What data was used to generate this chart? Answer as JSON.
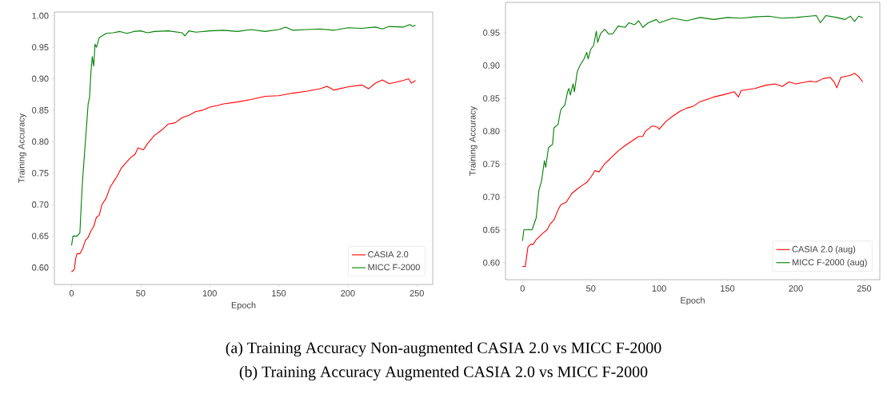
{
  "chart_data": [
    {
      "type": "line",
      "xlabel": "Epoch",
      "ylabel": "Training Accuracy",
      "legend": "bottom right",
      "xlim": [
        -12.45,
        261.45
      ],
      "ylim": [
        0.573,
        1.006
      ],
      "xticks": [
        0,
        50,
        100,
        150,
        200,
        250
      ],
      "yticks": [
        {
          "value": 0.6,
          "label": "0.60"
        },
        {
          "value": 0.65,
          "label": "0.65"
        },
        {
          "value": 0.7,
          "label": "0.70"
        },
        {
          "value": 0.75,
          "label": "0.75"
        },
        {
          "value": 0.8,
          "label": "0.80"
        },
        {
          "value": 0.85,
          "label": "0.85"
        },
        {
          "value": 0.9,
          "label": "0.90"
        },
        {
          "value": 0.95,
          "label": "0.95"
        },
        {
          "value": 1.0,
          "label": "1.00"
        }
      ],
      "annotations": [
        "(a) Training Accuracy Non-augmented CASIA 2.0 vs MICC F-2000"
      ],
      "series": [
        {
          "name": "CASIA 2.0",
          "color": "#ff0000",
          "x": [
            0,
            2,
            3,
            4,
            6,
            8,
            10,
            12,
            14,
            16,
            18,
            20,
            22,
            25,
            28,
            30,
            33,
            36,
            40,
            43,
            46,
            48,
            52,
            55,
            60,
            65,
            70,
            75,
            80,
            85,
            90,
            95,
            100,
            105,
            110,
            120,
            130,
            140,
            150,
            160,
            170,
            180,
            185,
            190,
            200,
            210,
            215,
            220,
            225,
            230,
            240,
            244,
            246,
            249
          ],
          "values": [
            0.593,
            0.597,
            0.615,
            0.622,
            0.622,
            0.63,
            0.643,
            0.648,
            0.658,
            0.665,
            0.68,
            0.683,
            0.7,
            0.71,
            0.728,
            0.735,
            0.745,
            0.758,
            0.768,
            0.775,
            0.78,
            0.79,
            0.787,
            0.797,
            0.81,
            0.818,
            0.828,
            0.83,
            0.838,
            0.842,
            0.848,
            0.85,
            0.855,
            0.857,
            0.86,
            0.863,
            0.867,
            0.872,
            0.873,
            0.877,
            0.88,
            0.884,
            0.888,
            0.882,
            0.887,
            0.89,
            0.884,
            0.893,
            0.898,
            0.892,
            0.897,
            0.9,
            0.893,
            0.897
          ]
        },
        {
          "name": "MICC F-2000",
          "color": "#008000",
          "x": [
            0,
            1,
            4,
            6,
            7,
            8,
            10,
            12,
            13,
            14,
            15,
            16,
            17,
            18,
            20,
            22,
            25,
            30,
            35,
            40,
            45,
            50,
            55,
            60,
            70,
            80,
            82,
            85,
            90,
            100,
            110,
            120,
            130,
            140,
            150,
            155,
            160,
            170,
            180,
            190,
            200,
            210,
            220,
            225,
            230,
            240,
            245,
            247,
            249
          ],
          "values": [
            0.635,
            0.65,
            0.65,
            0.655,
            0.7,
            0.74,
            0.8,
            0.86,
            0.87,
            0.91,
            0.935,
            0.92,
            0.955,
            0.95,
            0.965,
            0.968,
            0.972,
            0.973,
            0.975,
            0.972,
            0.975,
            0.976,
            0.973,
            0.975,
            0.976,
            0.973,
            0.968,
            0.976,
            0.974,
            0.976,
            0.977,
            0.975,
            0.978,
            0.975,
            0.978,
            0.982,
            0.977,
            0.978,
            0.979,
            0.977,
            0.981,
            0.98,
            0.982,
            0.979,
            0.983,
            0.982,
            0.986,
            0.983,
            0.985
          ]
        }
      ]
    },
    {
      "type": "line",
      "xlabel": "Epoch",
      "ylabel": "Training Accuracy",
      "legend": "bottom right",
      "xlim": [
        -12.45,
        261.45
      ],
      "ylim": [
        0.574,
        0.996
      ],
      "xticks": [
        0,
        50,
        100,
        150,
        200,
        250
      ],
      "yticks": [
        {
          "value": 0.6,
          "label": "0.60"
        },
        {
          "value": 0.65,
          "label": "0.65"
        },
        {
          "value": 0.7,
          "label": "0.70"
        },
        {
          "value": 0.75,
          "label": "0.75"
        },
        {
          "value": 0.8,
          "label": "0.80"
        },
        {
          "value": 0.85,
          "label": "0.85"
        },
        {
          "value": 0.9,
          "label": "0.90"
        },
        {
          "value": 0.95,
          "label": "0.95"
        }
      ],
      "annotations": [
        "(b) Training Accuracy Augmented CASIA 2.0 vs MICC F-2000"
      ],
      "series": [
        {
          "name": "CASIA 2.0 (aug)",
          "color": "#ff0000",
          "x": [
            0,
            2,
            4,
            6,
            8,
            10,
            15,
            18,
            20,
            23,
            26,
            28,
            32,
            36,
            40,
            44,
            47,
            50,
            53,
            56,
            60,
            65,
            70,
            75,
            80,
            85,
            88,
            90,
            95,
            99,
            100,
            105,
            110,
            115,
            120,
            125,
            130,
            140,
            148,
            155,
            158,
            160,
            170,
            178,
            185,
            190,
            195,
            200,
            210,
            215,
            220,
            225,
            228,
            230,
            233,
            240,
            243,
            246,
            249
          ],
          "values": [
            0.594,
            0.594,
            0.624,
            0.628,
            0.628,
            0.635,
            0.645,
            0.65,
            0.658,
            0.665,
            0.68,
            0.688,
            0.692,
            0.705,
            0.712,
            0.718,
            0.722,
            0.73,
            0.74,
            0.738,
            0.75,
            0.76,
            0.77,
            0.778,
            0.785,
            0.792,
            0.792,
            0.8,
            0.808,
            0.806,
            0.803,
            0.815,
            0.823,
            0.83,
            0.835,
            0.838,
            0.845,
            0.852,
            0.856,
            0.86,
            0.852,
            0.862,
            0.865,
            0.87,
            0.872,
            0.868,
            0.875,
            0.872,
            0.876,
            0.875,
            0.88,
            0.882,
            0.875,
            0.866,
            0.882,
            0.885,
            0.888,
            0.883,
            0.875
          ]
        },
        {
          "name": "MICC F-2000 (aug)",
          "color": "#008000",
          "x": [
            0,
            1,
            3,
            7,
            10,
            12,
            14,
            16,
            17,
            19,
            22,
            23,
            26,
            28,
            31,
            33,
            34,
            35,
            37,
            38,
            40,
            42,
            45,
            47,
            48,
            50,
            52,
            54,
            55,
            57,
            60,
            63,
            66,
            70,
            75,
            78,
            82,
            85,
            88,
            92,
            98,
            100,
            110,
            120,
            130,
            140,
            150,
            160,
            170,
            180,
            190,
            200,
            210,
            215,
            218,
            222,
            230,
            236,
            240,
            243,
            246,
            249
          ],
          "values": [
            0.633,
            0.65,
            0.65,
            0.65,
            0.668,
            0.71,
            0.725,
            0.755,
            0.745,
            0.775,
            0.78,
            0.805,
            0.81,
            0.833,
            0.84,
            0.86,
            0.865,
            0.855,
            0.872,
            0.86,
            0.89,
            0.9,
            0.91,
            0.92,
            0.91,
            0.925,
            0.93,
            0.952,
            0.935,
            0.948,
            0.955,
            0.948,
            0.948,
            0.96,
            0.958,
            0.965,
            0.962,
            0.968,
            0.958,
            0.965,
            0.97,
            0.965,
            0.972,
            0.968,
            0.973,
            0.97,
            0.973,
            0.972,
            0.974,
            0.975,
            0.972,
            0.973,
            0.975,
            0.976,
            0.965,
            0.976,
            0.973,
            0.97,
            0.975,
            0.967,
            0.975,
            0.973
          ]
        }
      ]
    }
  ]
}
